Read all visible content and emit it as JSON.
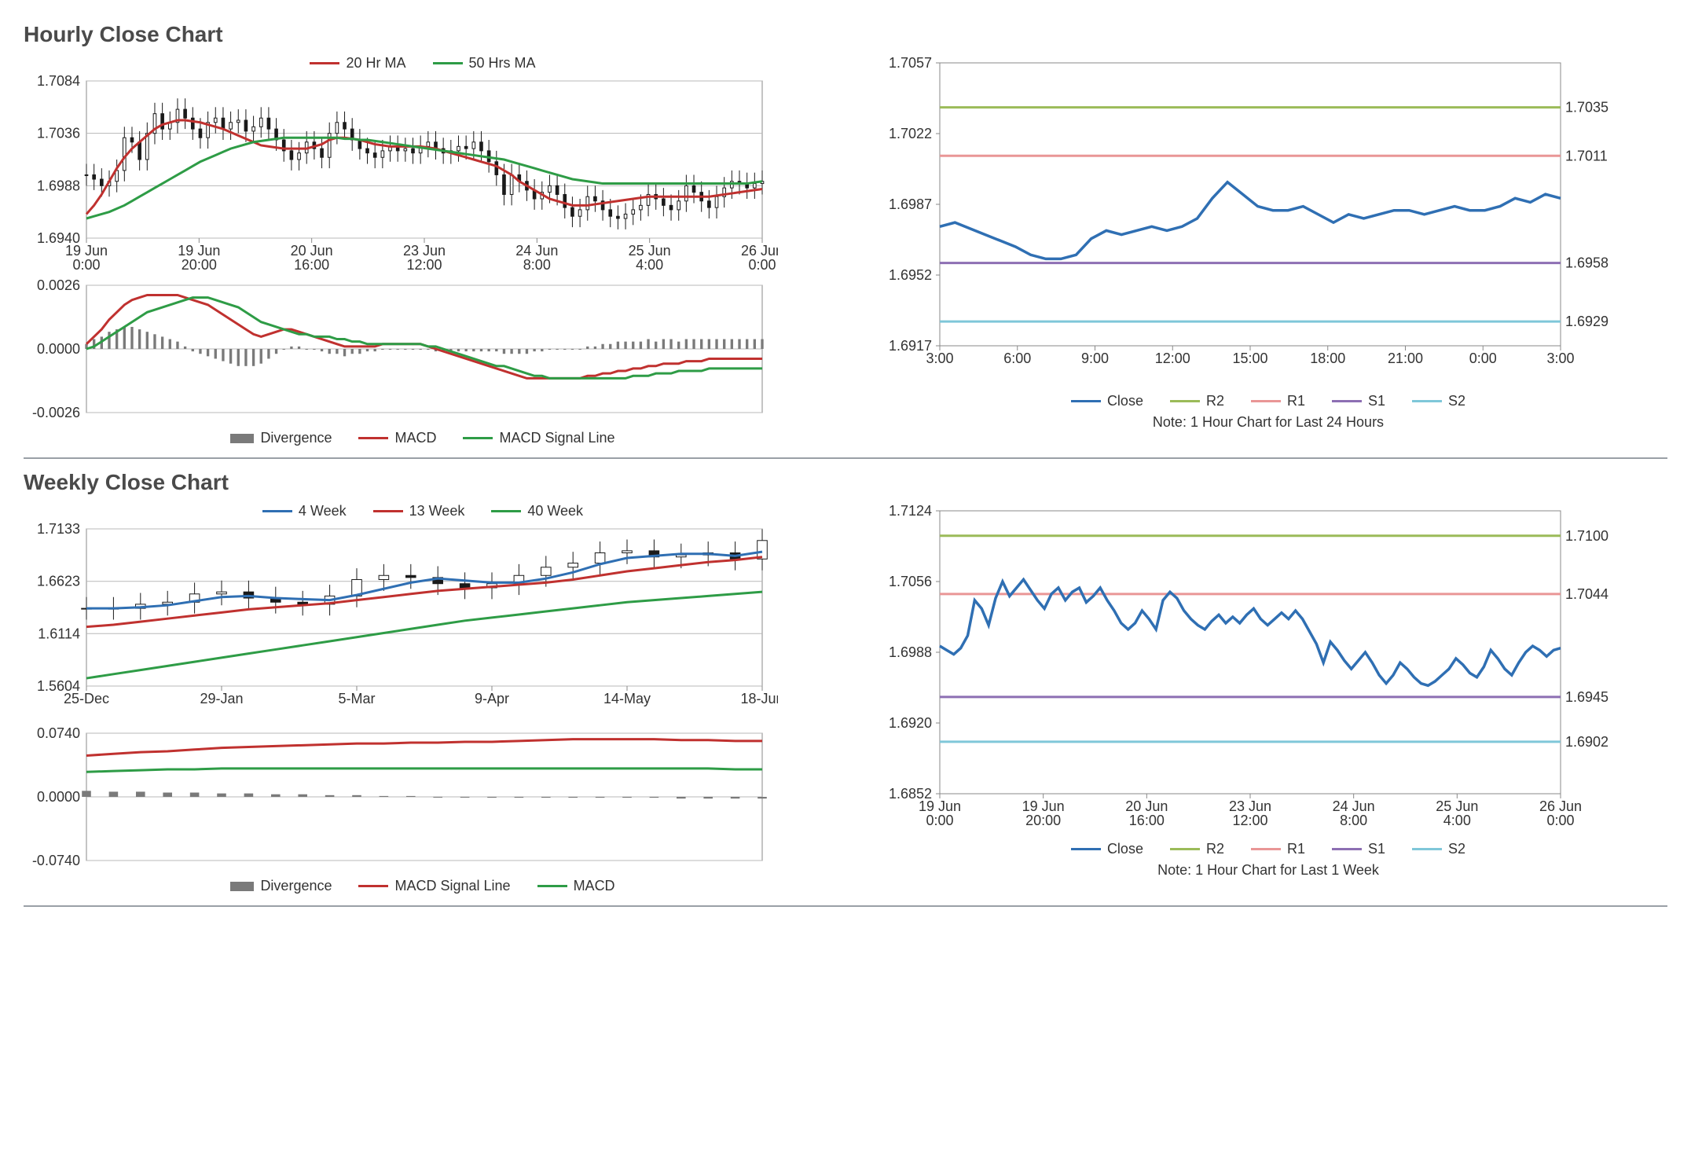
{
  "colors": {
    "text": "#333333",
    "title": "#4a4a4a",
    "axis": "#888888",
    "grid": "#b8b8b8",
    "border": "#888888",
    "candle": "#1a1a1a",
    "red": "#c0312f",
    "green": "#2e9c46",
    "blue": "#2f6fb3",
    "olive": "#9bbb59",
    "pink": "#e99696",
    "purple": "#8d6fb3",
    "cyan": "#7fc7d9",
    "divergence": "#7a7a7a"
  },
  "hourly": {
    "title": "Hourly Close Chart",
    "top_legend": [
      {
        "label": "20 Hr MA",
        "color": "#c0312f"
      },
      {
        "label": "50 Hrs MA",
        "color": "#2e9c46"
      }
    ],
    "price": {
      "type": "candlestick+lines",
      "ylim": [
        1.694,
        1.7084
      ],
      "yticks": [
        1.694,
        1.6988,
        1.7036,
        1.7084
      ],
      "xlabels": [
        "19 Jun\n0:00",
        "19 Jun\n20:00",
        "20 Jun\n16:00",
        "23 Jun\n12:00",
        "24 Jun\n8:00",
        "25 Jun\n4:00",
        "26 Jun\n0:00"
      ],
      "n": 90,
      "close": [
        1.6998,
        1.6994,
        1.6988,
        1.6992,
        1.7002,
        1.7032,
        1.7028,
        1.7012,
        1.7036,
        1.7054,
        1.704,
        1.7046,
        1.7058,
        1.705,
        1.704,
        1.7032,
        1.7046,
        1.705,
        1.704,
        1.7046,
        1.7048,
        1.7038,
        1.7042,
        1.705,
        1.704,
        1.703,
        1.702,
        1.7012,
        1.7018,
        1.7028,
        1.7022,
        1.7014,
        1.7036,
        1.7046,
        1.704,
        1.703,
        1.7022,
        1.7018,
        1.7014,
        1.702,
        1.7024,
        1.702,
        1.7022,
        1.7018,
        1.7024,
        1.7028,
        1.7022,
        1.7018,
        1.702,
        1.7024,
        1.7022,
        1.7028,
        1.702,
        1.701,
        1.6998,
        1.698,
        1.6998,
        1.6992,
        1.6984,
        1.6976,
        1.6982,
        1.6988,
        1.698,
        1.6968,
        1.696,
        1.6966,
        1.6978,
        1.6974,
        1.6966,
        1.696,
        1.6958,
        1.6962,
        1.6966,
        1.697,
        1.698,
        1.6976,
        1.697,
        1.6966,
        1.6974,
        1.6988,
        1.6982,
        1.6974,
        1.6968,
        1.6978,
        1.6986,
        1.6992,
        1.699,
        1.6986,
        1.699,
        1.6992
      ],
      "candle_range": 0.002,
      "ma20_color": "#c0312f",
      "ma50_color": "#2e9c46",
      "ma20": [
        1.6962,
        1.697,
        1.698,
        1.6992,
        1.7004,
        1.7014,
        1.7022,
        1.7028,
        1.7034,
        1.704,
        1.7044,
        1.7046,
        1.7048,
        1.7048,
        1.7047,
        1.7046,
        1.7044,
        1.7042,
        1.704,
        1.7037,
        1.7034,
        1.7031,
        1.7028,
        1.7025,
        1.7024,
        1.7023,
        1.7022,
        1.7022,
        1.7022,
        1.7022,
        1.7024,
        1.7026,
        1.703,
        1.7032,
        1.7032,
        1.7031,
        1.703,
        1.7028,
        1.7026,
        1.7025,
        1.7024,
        1.7024,
        1.7024,
        1.7024,
        1.7024,
        1.7023,
        1.7022,
        1.702,
        1.7018,
        1.7016,
        1.7014,
        1.7012,
        1.701,
        1.7008,
        1.7006,
        1.7002,
        1.6998,
        1.6992,
        1.6988,
        1.6984,
        1.698,
        1.6976,
        1.6974,
        1.6972,
        1.697,
        1.697,
        1.697,
        1.6971,
        1.6972,
        1.6973,
        1.6974,
        1.6975,
        1.6976,
        1.6977,
        1.6978,
        1.6978,
        1.6978,
        1.6978,
        1.6978,
        1.6978,
        1.6978,
        1.6978,
        1.6978,
        1.6979,
        1.698,
        1.6981,
        1.6982,
        1.6983,
        1.6984,
        1.6985
      ],
      "ma50": [
        1.6958,
        1.696,
        1.6962,
        1.6964,
        1.6967,
        1.697,
        1.6974,
        1.6978,
        1.6982,
        1.6986,
        1.699,
        1.6994,
        1.6998,
        1.7002,
        1.7006,
        1.701,
        1.7013,
        1.7016,
        1.7019,
        1.7022,
        1.7024,
        1.7026,
        1.7028,
        1.7029,
        1.703,
        1.7031,
        1.7032,
        1.7032,
        1.7032,
        1.7032,
        1.7032,
        1.7032,
        1.7032,
        1.7032,
        1.7031,
        1.7031,
        1.703,
        1.703,
        1.7029,
        1.7028,
        1.7027,
        1.7026,
        1.7025,
        1.7024,
        1.7023,
        1.7022,
        1.7021,
        1.702,
        1.7019,
        1.7018,
        1.7017,
        1.7016,
        1.7015,
        1.7014,
        1.7013,
        1.7012,
        1.701,
        1.7008,
        1.7006,
        1.7004,
        1.7002,
        1.7,
        1.6998,
        1.6996,
        1.6994,
        1.6993,
        1.6992,
        1.6991,
        1.699,
        1.699,
        1.699,
        1.699,
        1.699,
        1.699,
        1.699,
        1.699,
        1.699,
        1.699,
        1.699,
        1.699,
        1.699,
        1.699,
        1.699,
        1.699,
        1.699,
        1.699,
        1.699,
        1.699,
        1.6991,
        1.6992
      ]
    },
    "macd": {
      "ylim": [
        -0.0026,
        0.0026
      ],
      "yticks": [
        -0.0026,
        0.0,
        0.0026
      ],
      "legend": [
        {
          "label": "Divergence",
          "type": "bar",
          "color": "#7a7a7a"
        },
        {
          "label": "MACD",
          "type": "line",
          "color": "#c0312f"
        },
        {
          "label": "MACD Signal Line",
          "type": "line",
          "color": "#2e9c46"
        }
      ],
      "macd_vals": [
        0.0002,
        0.0005,
        0.0008,
        0.0012,
        0.0015,
        0.0018,
        0.002,
        0.0021,
        0.0022,
        0.0022,
        0.0022,
        0.0022,
        0.0022,
        0.0021,
        0.002,
        0.0019,
        0.0018,
        0.0016,
        0.0014,
        0.0012,
        0.001,
        0.0008,
        0.0006,
        0.0005,
        0.0006,
        0.0007,
        0.0008,
        0.0008,
        0.0007,
        0.0006,
        0.0005,
        0.0004,
        0.0003,
        0.0002,
        0.0001,
        0.0001,
        0.0001,
        0.0001,
        0.0001,
        0.0002,
        0.0002,
        0.0002,
        0.0002,
        0.0002,
        0.0002,
        0.0001,
        0.0,
        -0.0001,
        -0.0002,
        -0.0003,
        -0.0004,
        -0.0005,
        -0.0006,
        -0.0007,
        -0.0008,
        -0.0009,
        -0.001,
        -0.0011,
        -0.0012,
        -0.0012,
        -0.0012,
        -0.0012,
        -0.0012,
        -0.0012,
        -0.0012,
        -0.0012,
        -0.0011,
        -0.0011,
        -0.001,
        -0.001,
        -0.0009,
        -0.0009,
        -0.0008,
        -0.0008,
        -0.0007,
        -0.0007,
        -0.0006,
        -0.0006,
        -0.0006,
        -0.0005,
        -0.0005,
        -0.0005,
        -0.0004,
        -0.0004,
        -0.0004,
        -0.0004,
        -0.0004,
        -0.0004,
        -0.0004,
        -0.0004
      ],
      "signal_vals": [
        0.0,
        0.0001,
        0.0003,
        0.0005,
        0.0007,
        0.0009,
        0.0011,
        0.0013,
        0.0015,
        0.0016,
        0.0017,
        0.0018,
        0.0019,
        0.002,
        0.0021,
        0.0021,
        0.0021,
        0.002,
        0.0019,
        0.0018,
        0.0017,
        0.0015,
        0.0013,
        0.0011,
        0.001,
        0.0009,
        0.0008,
        0.0007,
        0.0006,
        0.0006,
        0.0005,
        0.0005,
        0.0005,
        0.0004,
        0.0004,
        0.0003,
        0.0003,
        0.0002,
        0.0002,
        0.0002,
        0.0002,
        0.0002,
        0.0002,
        0.0002,
        0.0002,
        0.0001,
        0.0001,
        0.0,
        -0.0001,
        -0.0002,
        -0.0003,
        -0.0004,
        -0.0005,
        -0.0006,
        -0.0007,
        -0.0007,
        -0.0008,
        -0.0009,
        -0.001,
        -0.0011,
        -0.0011,
        -0.0012,
        -0.0012,
        -0.0012,
        -0.0012,
        -0.0012,
        -0.0012,
        -0.0012,
        -0.0012,
        -0.0012,
        -0.0012,
        -0.0012,
        -0.0011,
        -0.0011,
        -0.0011,
        -0.001,
        -0.001,
        -0.001,
        -0.0009,
        -0.0009,
        -0.0009,
        -0.0009,
        -0.0008,
        -0.0008,
        -0.0008,
        -0.0008,
        -0.0008,
        -0.0008,
        -0.0008,
        -0.0008
      ]
    },
    "levels_chart": {
      "ylim": [
        1.6917,
        1.7057
      ],
      "yticks": [
        1.6917,
        1.6952,
        1.6987,
        1.7022,
        1.7057
      ],
      "xlabels": [
        "3:00",
        "6:00",
        "9:00",
        "12:00",
        "15:00",
        "18:00",
        "21:00",
        "0:00",
        "3:00"
      ],
      "legend": [
        {
          "label": "Close",
          "color": "#2f6fb3"
        },
        {
          "label": "R2",
          "color": "#9bbb59"
        },
        {
          "label": "R1",
          "color": "#e99696"
        },
        {
          "label": "S1",
          "color": "#8d6fb3"
        },
        {
          "label": "S2",
          "color": "#7fc7d9"
        }
      ],
      "levels": {
        "R2": 1.7035,
        "R1": 1.7011,
        "S1": 1.6958,
        "S2": 1.6929
      },
      "level_labels": {
        "R2": "1.7035",
        "R1": "1.7011",
        "S1": "1.6958",
        "S2": "1.6929"
      },
      "close": [
        1.6976,
        1.6978,
        1.6975,
        1.6972,
        1.6969,
        1.6966,
        1.6962,
        1.696,
        1.696,
        1.6962,
        1.697,
        1.6974,
        1.6972,
        1.6974,
        1.6976,
        1.6974,
        1.6976,
        1.698,
        1.699,
        1.6998,
        1.6992,
        1.6986,
        1.6984,
        1.6984,
        1.6986,
        1.6982,
        1.6978,
        1.6982,
        1.698,
        1.6982,
        1.6984,
        1.6984,
        1.6982,
        1.6984,
        1.6986,
        1.6984,
        1.6984,
        1.6986,
        1.699,
        1.6988,
        1.6992,
        1.699
      ],
      "note": "Note: 1 Hour Chart for Last 24 Hours"
    }
  },
  "weekly": {
    "title": "Weekly Close Chart",
    "top_legend": [
      {
        "label": "4 Week",
        "color": "#2f6fb3"
      },
      {
        "label": "13 Week",
        "color": "#c0312f"
      },
      {
        "label": "40 Week",
        "color": "#2e9c46"
      }
    ],
    "price": {
      "ylim": [
        1.5604,
        1.7133
      ],
      "yticks": [
        1.5604,
        1.6114,
        1.6623,
        1.7133
      ],
      "xlabels": [
        "25-Dec",
        "29-Jan",
        "5-Mar",
        "9-Apr",
        "14-May",
        "18-Jun"
      ],
      "n": 26,
      "close": [
        1.636,
        1.636,
        1.64,
        1.642,
        1.65,
        1.652,
        1.646,
        1.642,
        1.64,
        1.648,
        1.664,
        1.668,
        1.666,
        1.66,
        1.656,
        1.66,
        1.668,
        1.676,
        1.68,
        1.69,
        1.692,
        1.686,
        1.688,
        1.69,
        1.684,
        1.702
      ],
      "candle_range": 0.022,
      "ma4": [
        1.636,
        1.636,
        1.637,
        1.639,
        1.643,
        1.647,
        1.648,
        1.646,
        1.645,
        1.644,
        1.649,
        1.655,
        1.661,
        1.665,
        1.663,
        1.661,
        1.661,
        1.665,
        1.671,
        1.679,
        1.685,
        1.687,
        1.689,
        1.689,
        1.687,
        1.691
      ],
      "ma13": [
        1.618,
        1.62,
        1.623,
        1.626,
        1.629,
        1.632,
        1.635,
        1.637,
        1.639,
        1.641,
        1.644,
        1.647,
        1.65,
        1.653,
        1.655,
        1.657,
        1.659,
        1.661,
        1.664,
        1.668,
        1.672,
        1.675,
        1.678,
        1.681,
        1.683,
        1.686
      ],
      "ma40": [
        1.568,
        1.572,
        1.576,
        1.58,
        1.584,
        1.588,
        1.592,
        1.596,
        1.6,
        1.604,
        1.608,
        1.612,
        1.616,
        1.62,
        1.624,
        1.627,
        1.63,
        1.633,
        1.636,
        1.639,
        1.642,
        1.644,
        1.646,
        1.648,
        1.65,
        1.652
      ]
    },
    "macd": {
      "ylim": [
        -0.074,
        0.074
      ],
      "yticks": [
        -0.074,
        0.0,
        0.074
      ],
      "legend": [
        {
          "label": "Divergence",
          "type": "bar",
          "color": "#7a7a7a"
        },
        {
          "label": "MACD Signal Line",
          "type": "line",
          "color": "#c0312f"
        },
        {
          "label": "MACD",
          "type": "line",
          "color": "#2e9c46"
        }
      ],
      "signal_vals": [
        0.048,
        0.05,
        0.052,
        0.053,
        0.055,
        0.057,
        0.058,
        0.059,
        0.06,
        0.061,
        0.062,
        0.062,
        0.063,
        0.063,
        0.064,
        0.064,
        0.065,
        0.066,
        0.067,
        0.067,
        0.067,
        0.067,
        0.066,
        0.066,
        0.065,
        0.065
      ],
      "macd_vals": [
        0.029,
        0.03,
        0.031,
        0.032,
        0.032,
        0.033,
        0.033,
        0.033,
        0.033,
        0.033,
        0.033,
        0.033,
        0.033,
        0.033,
        0.033,
        0.033,
        0.033,
        0.033,
        0.033,
        0.033,
        0.033,
        0.033,
        0.033,
        0.033,
        0.032,
        0.032
      ],
      "divergence": [
        0.007,
        0.006,
        0.006,
        0.005,
        0.005,
        0.004,
        0.004,
        0.003,
        0.003,
        0.002,
        0.002,
        0.001,
        0.001,
        0.0,
        0.0,
        -0.001,
        -0.001,
        -0.001,
        -0.001,
        -0.001,
        -0.001,
        -0.001,
        -0.002,
        -0.002,
        -0.002,
        -0.002
      ]
    },
    "levels_chart": {
      "ylim": [
        1.6852,
        1.7124
      ],
      "yticks": [
        1.6852,
        1.692,
        1.6988,
        1.7056,
        1.7124
      ],
      "xlabels": [
        "19 Jun\n0:00",
        "19 Jun\n20:00",
        "20 Jun\n16:00",
        "23 Jun\n12:00",
        "24 Jun\n8:00",
        "25 Jun\n4:00",
        "26 Jun\n0:00"
      ],
      "legend": [
        {
          "label": "Close",
          "color": "#2f6fb3"
        },
        {
          "label": "R2",
          "color": "#9bbb59"
        },
        {
          "label": "R1",
          "color": "#e99696"
        },
        {
          "label": "S1",
          "color": "#8d6fb3"
        },
        {
          "label": "S2",
          "color": "#7fc7d9"
        }
      ],
      "levels": {
        "R2": 1.71,
        "R1": 1.7044,
        "S1": 1.6945,
        "S2": 1.6902
      },
      "level_labels": {
        "R2": "1.7100",
        "R1": "1.7044",
        "S1": "1.6945",
        "S2": "1.6902"
      },
      "close": [
        1.6994,
        1.699,
        1.6986,
        1.6992,
        1.7004,
        1.7038,
        1.703,
        1.7014,
        1.704,
        1.7056,
        1.7042,
        1.705,
        1.7058,
        1.7048,
        1.7038,
        1.703,
        1.7044,
        1.705,
        1.7038,
        1.7046,
        1.705,
        1.7036,
        1.7042,
        1.705,
        1.7038,
        1.7028,
        1.7016,
        1.701,
        1.7016,
        1.7028,
        1.702,
        1.701,
        1.7038,
        1.7046,
        1.704,
        1.7028,
        1.702,
        1.7014,
        1.701,
        1.7018,
        1.7024,
        1.7016,
        1.7022,
        1.7016,
        1.7024,
        1.703,
        1.702,
        1.7014,
        1.702,
        1.7026,
        1.702,
        1.7028,
        1.702,
        1.7008,
        1.6996,
        1.6978,
        1.6998,
        1.699,
        1.698,
        1.6972,
        1.698,
        1.6988,
        1.6978,
        1.6966,
        1.6958,
        1.6966,
        1.6978,
        1.6972,
        1.6964,
        1.6958,
        1.6956,
        1.696,
        1.6966,
        1.6972,
        1.6982,
        1.6976,
        1.6968,
        1.6964,
        1.6974,
        1.699,
        1.6982,
        1.6972,
        1.6966,
        1.6978,
        1.6988,
        1.6994,
        1.699,
        1.6984,
        1.699,
        1.6992
      ],
      "note": "Note: 1 Hour Chart for Last 1 Week"
    }
  }
}
